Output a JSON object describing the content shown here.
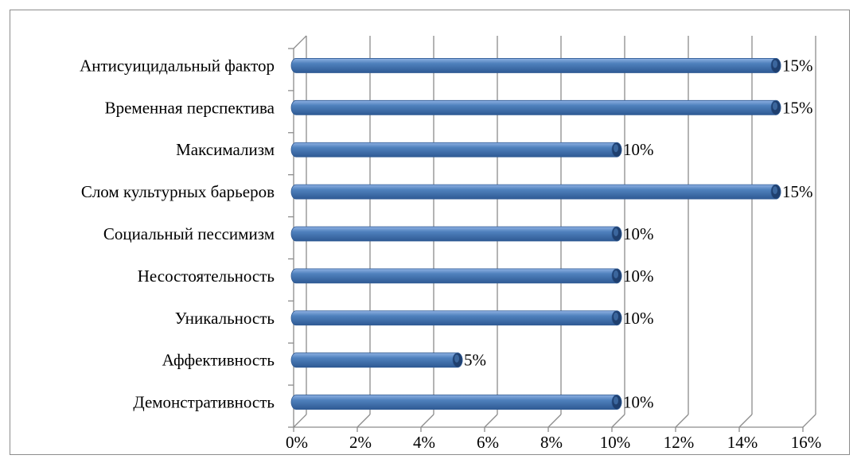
{
  "chart_data": {
    "type": "bar",
    "orientation": "horizontal",
    "style": "3d-cylinder",
    "categories": [
      "Антисуицидальный  фактор",
      "Временная перспектива",
      "Максимализм",
      "Слом культурных  барьеров",
      "Социальный пессимизм",
      "Несостоятельность",
      "Уникальность",
      "Аффективность",
      "Демонстративность"
    ],
    "values": [
      15,
      15,
      10,
      15,
      10,
      10,
      10,
      5,
      10
    ],
    "data_labels": [
      "15%",
      "15%",
      "10%",
      "15%",
      "10%",
      "10%",
      "10%",
      "5%",
      "10%"
    ],
    "xlim": [
      0,
      16
    ],
    "x_ticks": [
      0,
      2,
      4,
      6,
      8,
      10,
      12,
      14,
      16
    ],
    "x_tick_labels": [
      "0%",
      "2%",
      "4%",
      "6%",
      "8%",
      "10%",
      "12%",
      "14%",
      "16%"
    ],
    "grid": "vertical",
    "legend": "none",
    "colors": {
      "bar_light": "#8fb1e3",
      "bar_main": "#4f81bd",
      "bar_dark": "#2f5a94",
      "bar_cap": "#1f3f6e",
      "grid": "#8c8c8c",
      "text": "#000000"
    }
  }
}
